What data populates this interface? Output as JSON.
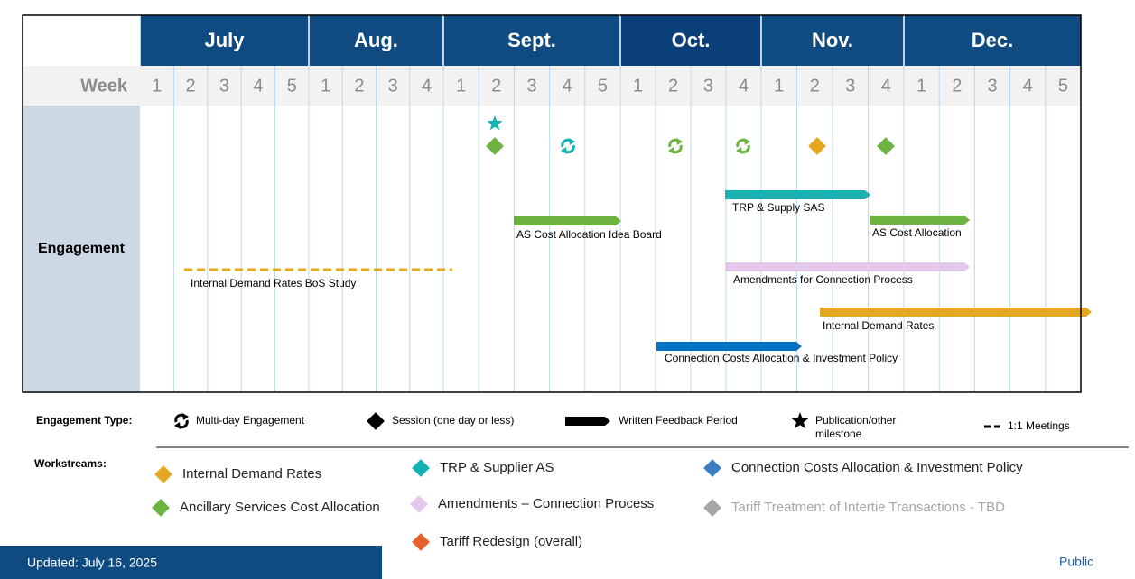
{
  "header": {
    "week_label": "Week",
    "months": [
      {
        "name": "July",
        "weeks": [
          1,
          2,
          3,
          4,
          5
        ]
      },
      {
        "name": "Aug.",
        "weeks": [
          1,
          2,
          3,
          4
        ]
      },
      {
        "name": "Sept.",
        "weeks": [
          1,
          2,
          3,
          4,
          5
        ]
      },
      {
        "name": "Oct.",
        "weeks": [
          1,
          2,
          3,
          4
        ]
      },
      {
        "name": "Nov.",
        "weeks": [
          1,
          2,
          3,
          4
        ]
      },
      {
        "name": "Dec.",
        "weeks": [
          1,
          2,
          3,
          4,
          5
        ]
      }
    ]
  },
  "row_label": "Engagement",
  "tasks": [
    "TRP & Supply SAS",
    "AS Cost Allocation Idea Board",
    "AS Cost Allocation",
    "Internal Demand Rates BoS Study",
    "Amendments for Connection Process",
    "Internal Demand Rates",
    "Connection Costs Allocation & Investment Policy"
  ],
  "legend": {
    "engagement_type": {
      "title": "Engagement Type:",
      "items": [
        "Multi-day Engagement",
        "Session (one day or less)",
        "Written Feedback Period",
        "Publication/other milestone",
        "1:1 Meetings"
      ]
    },
    "workstreams": {
      "title": "Workstreams:",
      "items": [
        "Internal Demand Rates",
        "Ancillary Services Cost Allocation",
        "TRP & Supplier AS",
        "Amendments – Connection Process",
        "Tariff Redesign (overall)",
        "Connection Costs Allocation & Investment Policy",
        "Tariff Treatment of Intertie Transactions - TBD"
      ]
    }
  },
  "footer": {
    "updated": "Updated: July 16, 2025",
    "classification": "Public"
  }
}
